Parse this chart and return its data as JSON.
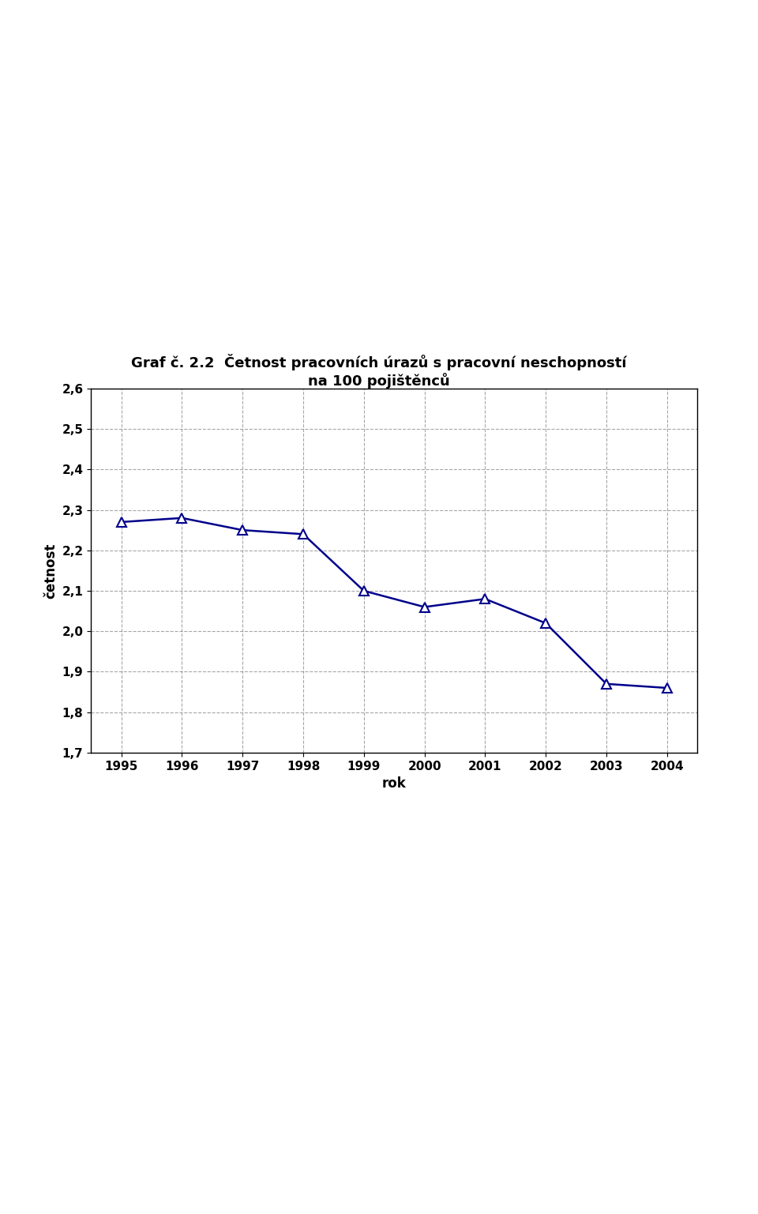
{
  "title_line1": "Graf č. 2.2  Četnost pracovních úrazů s pracovní neschopností",
  "title_line2": "na 100 pojištěnců",
  "xlabel": "rok",
  "ylabel": "četnost",
  "years": [
    1995,
    1996,
    1997,
    1998,
    1999,
    2000,
    2001,
    2002,
    2003,
    2004
  ],
  "values": [
    2.27,
    2.28,
    2.25,
    2.24,
    2.1,
    2.06,
    2.08,
    2.02,
    1.87,
    1.86
  ],
  "ylim": [
    1.7,
    2.6
  ],
  "yticks": [
    1.7,
    1.8,
    1.9,
    2.0,
    2.1,
    2.2,
    2.3,
    2.4,
    2.5,
    2.6
  ],
  "line_color": "#00008B",
  "marker_color": "#00008B",
  "background_color": "#ffffff",
  "title_fontsize": 13,
  "axis_label_fontsize": 12,
  "tick_fontsize": 11
}
